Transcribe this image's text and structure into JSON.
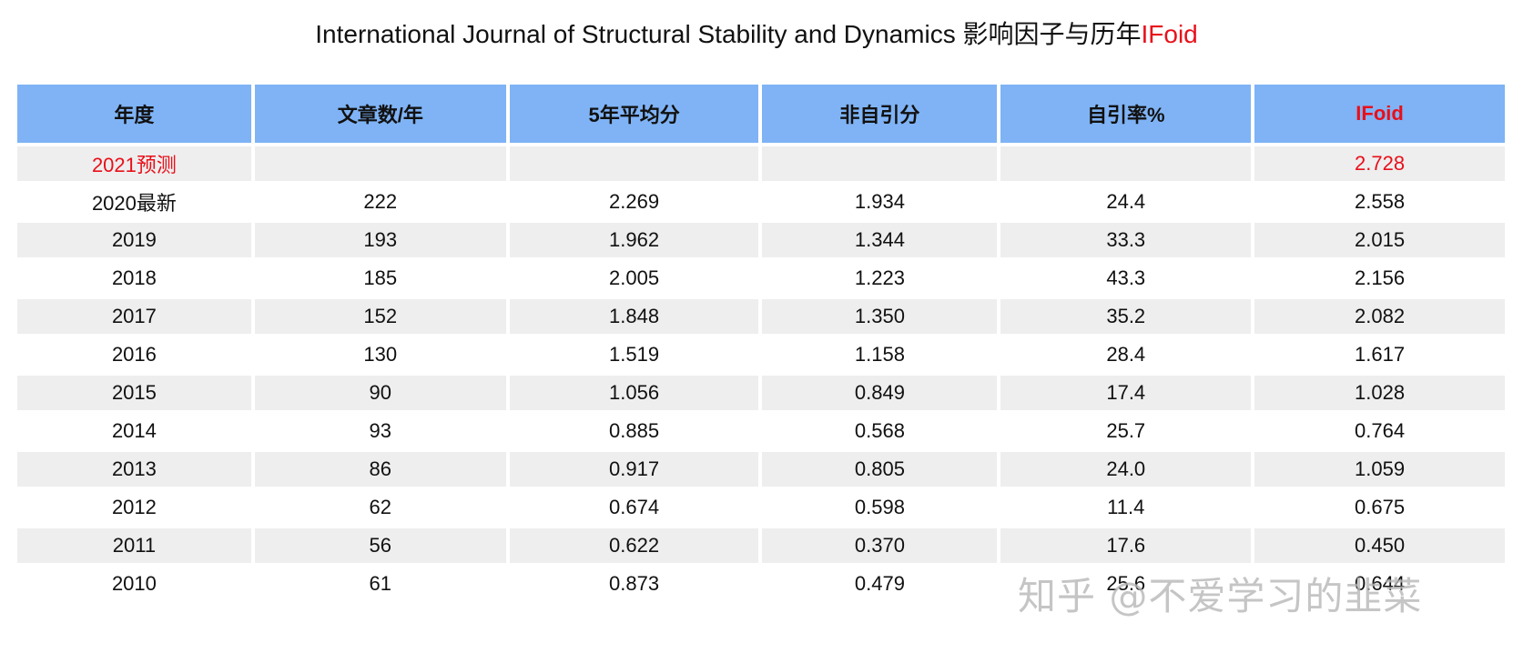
{
  "title": {
    "main": "International Journal of Structural Stability and Dynamics 影响因子与历年",
    "highlight": "IFoid"
  },
  "table": {
    "headers": [
      "年度",
      "文章数/年",
      "5年平均分",
      "非自引分",
      "自引率%",
      "IFoid"
    ],
    "rows": [
      [
        "2021预测",
        "",
        "",
        "",
        "",
        "2.728"
      ],
      [
        "2020最新",
        "222",
        "2.269",
        "1.934",
        "24.4",
        "2.558"
      ],
      [
        "2019",
        "193",
        "1.962",
        "1.344",
        "33.3",
        "2.015"
      ],
      [
        "2018",
        "185",
        "2.005",
        "1.223",
        "43.3",
        "2.156"
      ],
      [
        "2017",
        "152",
        "1.848",
        "1.350",
        "35.2",
        "2.082"
      ],
      [
        "2016",
        "130",
        "1.519",
        "1.158",
        "28.4",
        "1.617"
      ],
      [
        "2015",
        "90",
        "1.056",
        "0.849",
        "17.4",
        "1.028"
      ],
      [
        "2014",
        "93",
        "0.885",
        "0.568",
        "25.7",
        "0.764"
      ],
      [
        "2013",
        "86",
        "0.917",
        "0.805",
        "24.0",
        "1.059"
      ],
      [
        "2012",
        "62",
        "0.674",
        "0.598",
        "11.4",
        "0.675"
      ],
      [
        "2011",
        "56",
        "0.622",
        "0.370",
        "17.6",
        "0.450"
      ],
      [
        "2010",
        "61",
        "0.873",
        "0.479",
        "25.6",
        "0.644"
      ]
    ]
  },
  "watermark": "知乎 @不爱学习的韭菜",
  "colors": {
    "header_bg": "#7fb3f5",
    "highlight_red": "#e8101a",
    "stripe_bg": "#eeeeee"
  }
}
